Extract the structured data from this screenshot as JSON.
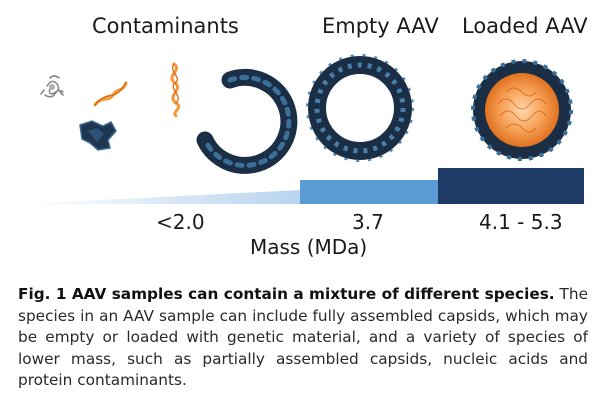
{
  "headers": {
    "contaminants": "Contaminants",
    "empty": "Empty AAV",
    "loaded": "Loaded AAV"
  },
  "scale": {
    "low": "<2.0",
    "mid": "3.7",
    "high": "4.1 - 5.3",
    "axis_label": "Mass (MDa)",
    "colors": [
      "#cfe2f4",
      "#5b9bd5",
      "#1e3a66"
    ]
  },
  "caption": {
    "title": "Fig. 1 AAV samples can contain a mixture of different species.",
    "body": "The species in an AAV sample can include fully assembled capsids, which may be empty or loaded with genetic material, and a variety of species of lower mass, such as partially assembled capsids, nucleic acids and protein contaminants."
  },
  "icons": {
    "protein": "protein-structure-icon",
    "nucleic_1": "nucleic-acid-helix-icon",
    "nucleic_2": "nucleic-acid-helix-icon",
    "fragment": "capsid-fragment-icon",
    "partial": "partial-capsid-icon",
    "empty": "empty-capsid-icon",
    "loaded": "loaded-capsid-icon"
  }
}
